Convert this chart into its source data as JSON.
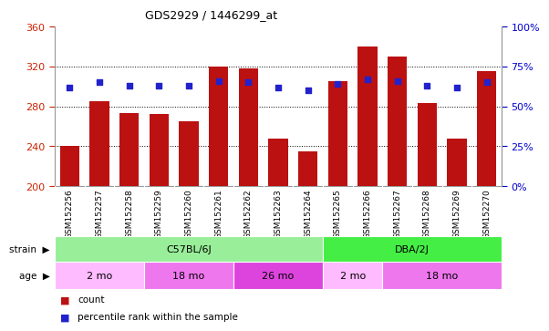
{
  "title": "GDS2929 / 1446299_at",
  "samples": [
    "GSM152256",
    "GSM152257",
    "GSM152258",
    "GSM152259",
    "GSM152260",
    "GSM152261",
    "GSM152262",
    "GSM152263",
    "GSM152264",
    "GSM152265",
    "GSM152266",
    "GSM152267",
    "GSM152268",
    "GSM152269",
    "GSM152270"
  ],
  "counts": [
    240,
    285,
    273,
    272,
    265,
    320,
    318,
    248,
    235,
    305,
    340,
    330,
    283,
    248,
    315
  ],
  "percentiles": [
    62,
    65,
    63,
    63,
    63,
    66,
    65,
    62,
    60,
    64,
    67,
    66,
    63,
    62,
    65
  ],
  "y_min": 200,
  "y_max": 360,
  "y_ticks": [
    200,
    240,
    280,
    320,
    360
  ],
  "y2_ticks": [
    0,
    25,
    50,
    75,
    100
  ],
  "bar_color": "#bb1111",
  "dot_color": "#2222cc",
  "strain_groups": [
    {
      "label": "C57BL/6J",
      "start": 0,
      "end": 9,
      "color": "#99ee99"
    },
    {
      "label": "DBA/2J",
      "start": 9,
      "end": 15,
      "color": "#44ee44"
    }
  ],
  "age_groups": [
    {
      "label": "2 mo",
      "start": 0,
      "end": 3,
      "color": "#ffbbff"
    },
    {
      "label": "18 mo",
      "start": 3,
      "end": 6,
      "color": "#ee77ee"
    },
    {
      "label": "26 mo",
      "start": 6,
      "end": 9,
      "color": "#dd44dd"
    },
    {
      "label": "2 mo",
      "start": 9,
      "end": 11,
      "color": "#ffbbff"
    },
    {
      "label": "18 mo",
      "start": 11,
      "end": 15,
      "color": "#ee77ee"
    }
  ],
  "bar_color_legend": "#bb1111",
  "dot_color_legend": "#2222cc",
  "tick_color_left": "#cc2200",
  "tick_color_right": "#0000cc",
  "plot_bg": "#ffffff",
  "xticklabel_bg": "#cccccc",
  "grid_color": "#555555",
  "spine_color": "#999999"
}
